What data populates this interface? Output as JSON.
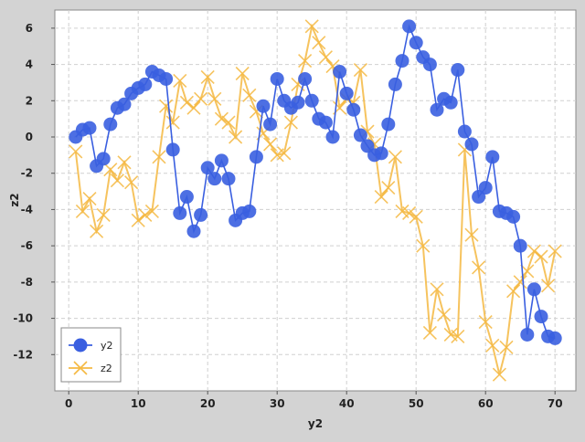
{
  "chart_data": {
    "type": "line",
    "title": "",
    "xlabel": "y2",
    "ylabel": "z2",
    "xlim": [
      -2,
      73
    ],
    "ylim": [
      -14,
      7
    ],
    "xticks": [
      0,
      10,
      20,
      30,
      40,
      50,
      60,
      70
    ],
    "yticks": [
      -12,
      -10,
      -8,
      -6,
      -4,
      -2,
      0,
      2,
      4,
      6
    ],
    "grid": true,
    "legend_position": "bottom-left",
    "series": [
      {
        "name": "y2",
        "color": "#3a5fe0",
        "marker": "circle",
        "x": [
          1,
          2,
          3,
          4,
          5,
          6,
          7,
          8,
          9,
          10,
          11,
          12,
          13,
          14,
          15,
          16,
          17,
          18,
          19,
          20,
          21,
          22,
          23,
          24,
          25,
          26,
          27,
          28,
          29,
          30,
          31,
          32,
          33,
          34,
          35,
          36,
          37,
          38,
          39,
          40,
          41,
          42,
          43,
          44,
          45,
          46,
          47,
          48,
          49,
          50,
          51,
          52,
          53,
          54,
          55,
          56,
          57,
          58,
          59,
          60,
          61,
          62,
          63,
          64,
          65,
          66,
          67,
          68,
          69,
          70
        ],
        "y": [
          0.0,
          0.4,
          0.5,
          -1.6,
          -1.2,
          0.7,
          1.6,
          1.8,
          2.4,
          2.7,
          2.9,
          3.6,
          3.4,
          3.2,
          -0.7,
          -4.2,
          -3.3,
          -5.2,
          -4.3,
          -1.7,
          -2.3,
          -1.3,
          -2.3,
          -4.6,
          -4.2,
          -4.1,
          -1.1,
          1.7,
          0.7,
          3.2,
          2.0,
          1.6,
          1.9,
          3.2,
          2.0,
          1.0,
          0.8,
          0.0,
          3.6,
          2.4,
          1.5,
          0.1,
          -0.5,
          -1.0,
          -0.9,
          0.7,
          2.9,
          4.2,
          6.1,
          5.2,
          4.4,
          4.0,
          1.5,
          2.1,
          1.9,
          3.7,
          0.3,
          -0.4,
          -3.3,
          -2.8,
          -1.1,
          -4.1,
          -4.2,
          -4.4,
          -6.0,
          -10.9,
          -8.4,
          -9.9,
          -11.0,
          -11.1
        ]
      },
      {
        "name": "z2",
        "color": "#f5b942",
        "marker": "x",
        "x": [
          1,
          2,
          3,
          4,
          5,
          6,
          7,
          8,
          9,
          10,
          11,
          12,
          13,
          14,
          15,
          16,
          17,
          18,
          19,
          20,
          21,
          22,
          23,
          24,
          25,
          26,
          27,
          28,
          29,
          30,
          31,
          32,
          33,
          34,
          35,
          36,
          37,
          38,
          39,
          40,
          41,
          42,
          43,
          44,
          45,
          46,
          47,
          48,
          49,
          50,
          51,
          52,
          53,
          54,
          55,
          56,
          57,
          58,
          59,
          60,
          61,
          62,
          63,
          64,
          65,
          66,
          67,
          68,
          69,
          70
        ],
        "y": [
          -0.8,
          -4.1,
          -3.4,
          -5.2,
          -4.3,
          -1.8,
          -2.4,
          -1.4,
          -2.5,
          -4.6,
          -4.3,
          -4.1,
          -1.1,
          1.7,
          0.8,
          3.1,
          1.9,
          1.6,
          2.1,
          3.3,
          2.1,
          1.0,
          0.8,
          0.0,
          3.5,
          2.3,
          1.4,
          0.2,
          -0.4,
          -1.0,
          -0.9,
          0.8,
          2.9,
          4.2,
          6.1,
          5.2,
          4.4,
          3.9,
          1.6,
          2.1,
          1.9,
          3.7,
          0.3,
          -0.4,
          -3.3,
          -2.8,
          -1.1,
          -4.1,
          -4.2,
          -4.4,
          -6.0,
          -10.8,
          -8.4,
          -9.8,
          -10.9,
          -11.0,
          -0.7,
          -5.4,
          -7.2,
          -10.2,
          -11.5,
          -13.1,
          -11.6,
          -8.5,
          -8.0,
          -7.4,
          -6.3,
          -6.6,
          -8.2,
          -6.3
        ]
      }
    ]
  }
}
